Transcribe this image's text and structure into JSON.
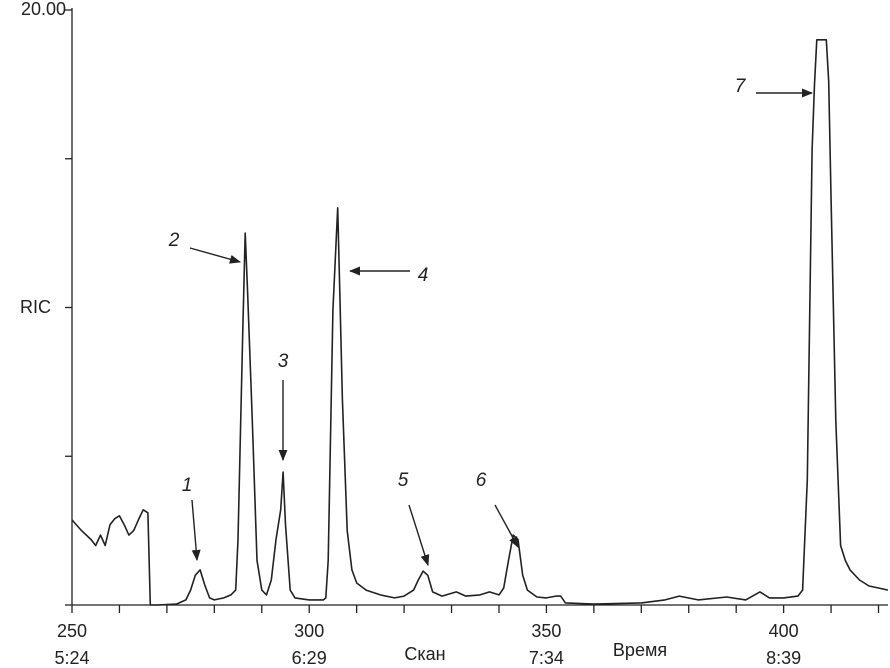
{
  "chart_data": {
    "type": "line",
    "ylabel": "RIC",
    "xlabel": "Скан",
    "xlabel2": "Время",
    "color": "#222222",
    "x": [
      250,
      252,
      254,
      255,
      256,
      257,
      258,
      259,
      260,
      261,
      262,
      263,
      264,
      265,
      266,
      266.5,
      268,
      272,
      274,
      275,
      276,
      277,
      278,
      279,
      280,
      282,
      283.5,
      284.5,
      285,
      286,
      286.5,
      287,
      288,
      289,
      290,
      291,
      292,
      293,
      294,
      294.5,
      295,
      296,
      297,
      300,
      303,
      303.5,
      304,
      305,
      306,
      306.5,
      307,
      308,
      309,
      310,
      312,
      315,
      318,
      320,
      322,
      323,
      324,
      325,
      326,
      328,
      331,
      333,
      336,
      338,
      340,
      341,
      342,
      343,
      344,
      345,
      346,
      348,
      350,
      352,
      353,
      354,
      360,
      370,
      375,
      378,
      382,
      388,
      392,
      395,
      397,
      400,
      403,
      404,
      405,
      406,
      406.5,
      407,
      409,
      409.5,
      410,
      411,
      412,
      413,
      414,
      416,
      418,
      420,
      422
    ],
    "values": [
      2.86,
      2.5,
      2.2,
      2.0,
      2.35,
      2.0,
      2.7,
      2.9,
      3.0,
      2.7,
      2.35,
      2.5,
      2.86,
      3.2,
      3.1,
      0,
      0,
      0.03,
      0.17,
      0.5,
      1.0,
      1.18,
      0.67,
      0.24,
      0.17,
      0.24,
      0.34,
      0.5,
      2.2,
      9.25,
      12.5,
      10.6,
      6.2,
      1.5,
      0.5,
      0.34,
      0.84,
      2.2,
      3.2,
      4.47,
      2.7,
      0.5,
      0.24,
      0.17,
      0.17,
      0.24,
      1.5,
      9.9,
      13.35,
      10.25,
      6.9,
      2.5,
      1.18,
      0.74,
      0.5,
      0.34,
      0.24,
      0.3,
      0.5,
      0.84,
      1.14,
      1.0,
      0.44,
      0.3,
      0.44,
      0.3,
      0.34,
      0.44,
      0.34,
      0.57,
      1.5,
      2.35,
      2.2,
      1.0,
      0.5,
      0.27,
      0.24,
      0.3,
      0.3,
      0.07,
      0.03,
      0.07,
      0.17,
      0.3,
      0.17,
      0.27,
      0.17,
      0.44,
      0.24,
      0.24,
      0.3,
      0.5,
      4.2,
      15.3,
      17.5,
      19.0,
      19.0,
      17.6,
      13.6,
      6.2,
      2.0,
      1.5,
      1.18,
      0.84,
      0.64,
      0.57,
      0.5
    ],
    "xlim": [
      250,
      422
    ],
    "ylim": [
      0,
      20
    ],
    "yticks": [
      {
        "value": 0,
        "label": null
      },
      {
        "value": 5,
        "label": null
      },
      {
        "value": 10,
        "label": null
      },
      {
        "value": 15,
        "label": null
      },
      {
        "value": 20,
        "label": "20.00"
      }
    ],
    "xticks": [
      {
        "value": 250,
        "label": "250",
        "time": "5:24"
      },
      {
        "value": 260,
        "label": null
      },
      {
        "value": 270,
        "label": null
      },
      {
        "value": 280,
        "label": null
      },
      {
        "value": 290,
        "label": null
      },
      {
        "value": 300,
        "label": "300",
        "time": "6:29"
      },
      {
        "value": 310,
        "label": null
      },
      {
        "value": 320,
        "label": null
      },
      {
        "value": 330,
        "label": null
      },
      {
        "value": 340,
        "label": null
      },
      {
        "value": 350,
        "label": "350",
        "time": "7:34"
      },
      {
        "value": 360,
        "label": null
      },
      {
        "value": 370,
        "label": null
      },
      {
        "value": 380,
        "label": null
      },
      {
        "value": 390,
        "label": null
      },
      {
        "value": 400,
        "label": "400",
        "time": "8:39"
      },
      {
        "value": 410,
        "label": null
      },
      {
        "value": 420,
        "label": null
      }
    ],
    "annotations": [
      "1",
      "2",
      "3",
      "4",
      "5",
      "6",
      "7"
    ]
  }
}
